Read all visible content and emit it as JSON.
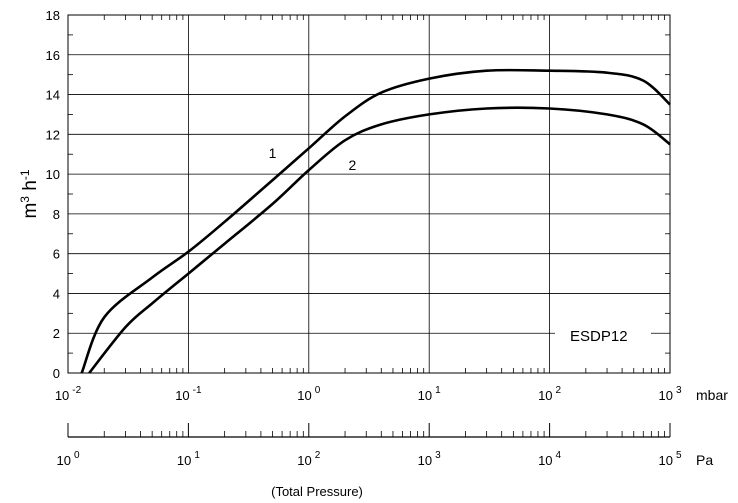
{
  "chart_data": {
    "type": "line",
    "xscale": "log",
    "xlim": [
      0.01,
      1000
    ],
    "ylim": [
      0,
      18
    ],
    "yticks": [
      0,
      2,
      4,
      6,
      8,
      10,
      12,
      14,
      16,
      18
    ],
    "grid": true,
    "ylabel_parts": {
      "base1": "m",
      "sup1": "3",
      "base2": " h",
      "sup2": "-1"
    },
    "x_axis_unit": "mbar",
    "pa_axis_unit": "Pa",
    "xlabel": "(Total Pressure)",
    "annotation": "ESDP12",
    "x_ticks": [
      {
        "base": "10",
        "exp": "-2",
        "value": 0.01
      },
      {
        "base": "10",
        "exp": "-1",
        "value": 0.1
      },
      {
        "base": "10",
        "exp": "0",
        "value": 1
      },
      {
        "base": "10",
        "exp": "1",
        "value": 10
      },
      {
        "base": "10",
        "exp": "2",
        "value": 100
      },
      {
        "base": "10",
        "exp": "3",
        "value": 1000
      }
    ],
    "pa_ticks": [
      {
        "base": "10",
        "exp": "0",
        "value": 1
      },
      {
        "base": "10",
        "exp": "1",
        "value": 10
      },
      {
        "base": "10",
        "exp": "2",
        "value": 100
      },
      {
        "base": "10",
        "exp": "3",
        "value": 1000
      },
      {
        "base": "10",
        "exp": "4",
        "value": 10000
      },
      {
        "base": "10",
        "exp": "5",
        "value": 100000
      }
    ],
    "series": [
      {
        "label": "1",
        "label_at": [
          0.5,
          10.8
        ],
        "x": [
          0.013,
          0.02,
          0.05,
          0.1,
          0.2,
          0.5,
          1,
          2,
          4,
          10,
          30,
          100,
          300,
          600,
          1000
        ],
        "y": [
          0,
          2.8,
          4.8,
          6.1,
          7.6,
          9.7,
          11.3,
          12.9,
          14.1,
          14.8,
          15.2,
          15.2,
          15.1,
          14.7,
          13.5
        ]
      },
      {
        "label": "2",
        "label_at": [
          2.3,
          10.2
        ],
        "x": [
          0.015,
          0.03,
          0.05,
          0.1,
          0.2,
          0.5,
          1,
          2,
          4,
          10,
          30,
          100,
          300,
          600,
          1000
        ],
        "y": [
          0,
          2.3,
          3.5,
          5.0,
          6.5,
          8.5,
          10.2,
          11.7,
          12.5,
          13.0,
          13.3,
          13.3,
          13.0,
          12.5,
          11.5
        ]
      }
    ]
  }
}
